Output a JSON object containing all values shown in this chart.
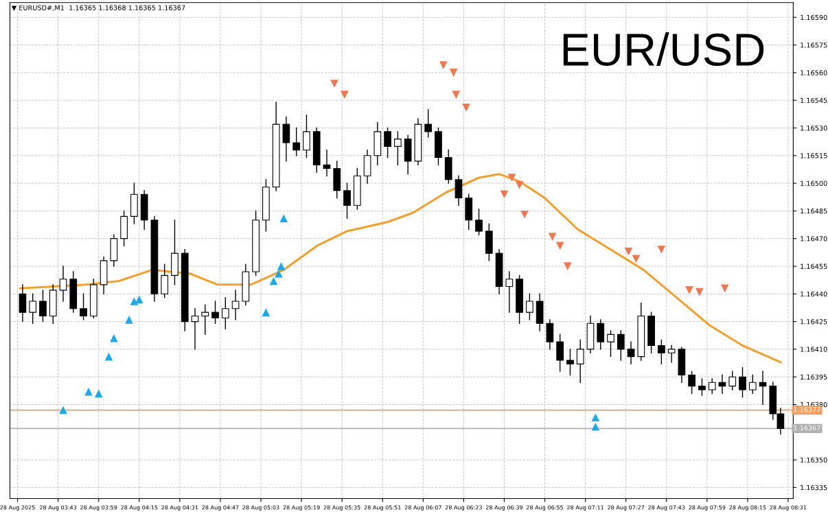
{
  "chart_data": {
    "type": "candlestick",
    "title": "EUR/USD",
    "subtitle": "▼ EURUSD#,M1  1.16365 1.16368 1.16365 1.16367",
    "x": [
      "2025-08-28T03:29",
      "2025-08-28T03:33",
      "2025-08-28T03:37",
      "2025-08-28T03:41",
      "2025-08-28T03:45",
      "2025-08-28T03:49",
      "2025-08-28T03:53",
      "2025-08-28T03:57",
      "2025-08-28T04:01",
      "2025-08-28T04:05",
      "2025-08-28T04:09",
      "2025-08-28T04:13",
      "2025-08-28T04:17",
      "2025-08-28T04:21",
      "2025-08-28T04:25",
      "2025-08-28T04:29",
      "2025-08-28T04:33",
      "2025-08-28T04:37",
      "2025-08-28T04:41",
      "2025-08-28T04:45",
      "2025-08-28T04:49",
      "2025-08-28T04:53",
      "2025-08-28T04:57",
      "2025-08-28T05:01",
      "2025-08-28T05:05",
      "2025-08-28T05:09",
      "2025-08-28T05:13",
      "2025-08-28T05:17",
      "2025-08-28T05:21",
      "2025-08-28T05:25",
      "2025-08-28T05:29",
      "2025-08-28T05:33",
      "2025-08-28T05:37",
      "2025-08-28T05:41",
      "2025-08-28T05:45",
      "2025-08-28T05:49",
      "2025-08-28T05:53",
      "2025-08-28T05:57",
      "2025-08-28T06:01",
      "2025-08-28T06:05",
      "2025-08-28T06:09",
      "2025-08-28T06:13",
      "2025-08-28T06:17",
      "2025-08-28T06:21",
      "2025-08-28T06:25",
      "2025-08-28T06:29",
      "2025-08-28T06:33",
      "2025-08-28T06:37",
      "2025-08-28T06:41",
      "2025-08-28T06:45",
      "2025-08-28T06:49",
      "2025-08-28T06:53",
      "2025-08-28T06:57",
      "2025-08-28T07:01",
      "2025-08-28T07:05",
      "2025-08-28T07:09",
      "2025-08-28T07:13",
      "2025-08-28T07:17",
      "2025-08-28T07:21",
      "2025-08-28T07:25",
      "2025-08-28T07:29",
      "2025-08-28T07:33",
      "2025-08-28T07:37",
      "2025-08-28T07:41",
      "2025-08-28T07:45",
      "2025-08-28T07:49",
      "2025-08-28T07:53",
      "2025-08-28T07:57",
      "2025-08-28T08:01",
      "2025-08-28T08:05",
      "2025-08-28T08:09",
      "2025-08-28T08:13",
      "2025-08-28T08:17",
      "2025-08-28T08:21",
      "2025-08-28T08:25",
      "2025-08-28T08:28"
    ],
    "ohlc": [
      [
        1.1644,
        1.16445,
        1.16425,
        1.1643
      ],
      [
        1.1643,
        1.1644,
        1.16424,
        1.16436
      ],
      [
        1.16436,
        1.16442,
        1.16425,
        1.16428
      ],
      [
        1.16428,
        1.16445,
        1.16424,
        1.16442
      ],
      [
        1.16442,
        1.16455,
        1.16436,
        1.16448
      ],
      [
        1.16448,
        1.16452,
        1.1643,
        1.16432
      ],
      [
        1.16432,
        1.1644,
        1.16426,
        1.16428
      ],
      [
        1.16428,
        1.16448,
        1.16427,
        1.16445
      ],
      [
        1.16445,
        1.1646,
        1.1644,
        1.16458
      ],
      [
        1.16458,
        1.16472,
        1.16455,
        1.1647
      ],
      [
        1.1647,
        1.16485,
        1.16466,
        1.16482
      ],
      [
        1.16482,
        1.165,
        1.16478,
        1.16494
      ],
      [
        1.16494,
        1.16496,
        1.16475,
        1.1648
      ],
      [
        1.1648,
        1.16482,
        1.16436,
        1.1644
      ],
      [
        1.1644,
        1.16456,
        1.16438,
        1.1645
      ],
      [
        1.1645,
        1.1648,
        1.16445,
        1.16462
      ],
      [
        1.16462,
        1.16464,
        1.1642,
        1.16425
      ],
      [
        1.16425,
        1.16432,
        1.1641,
        1.16428
      ],
      [
        1.16428,
        1.16434,
        1.16418,
        1.1643
      ],
      [
        1.1643,
        1.16436,
        1.16424,
        1.16427
      ],
      [
        1.16427,
        1.16438,
        1.16421,
        1.16432
      ],
      [
        1.16432,
        1.16442,
        1.16426,
        1.16436
      ],
      [
        1.16436,
        1.16456,
        1.16434,
        1.16452
      ],
      [
        1.16452,
        1.16485,
        1.1645,
        1.1648
      ],
      [
        1.1648,
        1.16502,
        1.16474,
        1.16498
      ],
      [
        1.16498,
        1.16544,
        1.16496,
        1.16532
      ],
      [
        1.16532,
        1.16536,
        1.16512,
        1.16522
      ],
      [
        1.16522,
        1.1653,
        1.16515,
        1.16518
      ],
      [
        1.16518,
        1.16537,
        1.16514,
        1.16528
      ],
      [
        1.16528,
        1.1653,
        1.16506,
        1.1651
      ],
      [
        1.1651,
        1.16518,
        1.16504,
        1.16508
      ],
      [
        1.16508,
        1.16512,
        1.16492,
        1.16496
      ],
      [
        1.16496,
        1.165,
        1.16481,
        1.16488
      ],
      [
        1.16488,
        1.16508,
        1.16486,
        1.16504
      ],
      [
        1.16504,
        1.16518,
        1.165,
        1.16515
      ],
      [
        1.16515,
        1.16533,
        1.1651,
        1.16528
      ],
      [
        1.16528,
        1.1653,
        1.16514,
        1.1652
      ],
      [
        1.1652,
        1.16528,
        1.1651,
        1.16524
      ],
      [
        1.16524,
        1.16526,
        1.16505,
        1.16512
      ],
      [
        1.16512,
        1.16535,
        1.1651,
        1.16532
      ],
      [
        1.16532,
        1.1654,
        1.16525,
        1.16528
      ],
      [
        1.16528,
        1.1653,
        1.1651,
        1.16514
      ],
      [
        1.16514,
        1.16518,
        1.165,
        1.16502
      ],
      [
        1.16502,
        1.16504,
        1.16488,
        1.16492
      ],
      [
        1.16492,
        1.16494,
        1.16475,
        1.1648
      ],
      [
        1.1648,
        1.16486,
        1.16472,
        1.16474
      ],
      [
        1.16474,
        1.16478,
        1.16458,
        1.16462
      ],
      [
        1.16462,
        1.16464,
        1.1644,
        1.16444
      ],
      [
        1.16444,
        1.16452,
        1.1643,
        1.16448
      ],
      [
        1.16448,
        1.1645,
        1.16424,
        1.1643
      ],
      [
        1.1643,
        1.1644,
        1.16426,
        1.16436
      ],
      [
        1.16436,
        1.1644,
        1.1642,
        1.16424
      ],
      [
        1.16424,
        1.16426,
        1.1641,
        1.16414
      ],
      [
        1.16414,
        1.16418,
        1.16398,
        1.16404
      ],
      [
        1.16404,
        1.1641,
        1.16396,
        1.16402
      ],
      [
        1.16402,
        1.16415,
        1.16392,
        1.1641
      ],
      [
        1.1641,
        1.16428,
        1.16408,
        1.16424
      ],
      [
        1.16424,
        1.16426,
        1.1641,
        1.16414
      ],
      [
        1.16414,
        1.1642,
        1.16406,
        1.16418
      ],
      [
        1.16418,
        1.1642,
        1.16404,
        1.1641
      ],
      [
        1.1641,
        1.16414,
        1.16402,
        1.16406
      ],
      [
        1.16406,
        1.16435,
        1.16404,
        1.16428
      ],
      [
        1.16428,
        1.1643,
        1.16408,
        1.16412
      ],
      [
        1.16412,
        1.16415,
        1.16402,
        1.16408
      ],
      [
        1.16408,
        1.16412,
        1.16403,
        1.1641
      ],
      [
        1.1641,
        1.16411,
        1.16392,
        1.16396
      ],
      [
        1.16396,
        1.16398,
        1.16386,
        1.1639
      ],
      [
        1.1639,
        1.16394,
        1.16385,
        1.16388
      ],
      [
        1.16388,
        1.16394,
        1.16386,
        1.16392
      ],
      [
        1.16392,
        1.16396,
        1.16386,
        1.1639
      ],
      [
        1.1639,
        1.16398,
        1.16388,
        1.16395
      ],
      [
        1.16395,
        1.164,
        1.16384,
        1.16388
      ],
      [
        1.16388,
        1.16396,
        1.16386,
        1.16392
      ],
      [
        1.16392,
        1.16398,
        1.1638,
        1.1639
      ],
      [
        1.1639,
        1.16392,
        1.16372,
        1.16375
      ],
      [
        1.16375,
        1.16378,
        1.16364,
        1.16367
      ]
    ],
    "series": [
      {
        "type": "line",
        "color": "#f0a030",
        "x": [
          "2025-08-28T03:28",
          "2025-08-28T03:41",
          "2025-08-28T03:54",
          "2025-08-28T04:07",
          "2025-08-28T04:20",
          "2025-08-28T04:35",
          "2025-08-28T04:46",
          "2025-08-28T04:59",
          "2025-08-28T05:12",
          "2025-08-28T05:25",
          "2025-08-28T05:37",
          "2025-08-28T05:53",
          "2025-08-28T06:03",
          "2025-08-28T06:16",
          "2025-08-28T06:29",
          "2025-08-28T06:37",
          "2025-08-28T06:45",
          "2025-08-28T06:55",
          "2025-08-28T07:08",
          "2025-08-28T07:21",
          "2025-08-28T07:34",
          "2025-08-28T07:47",
          "2025-08-28T08:00",
          "2025-08-28T08:13",
          "2025-08-28T08:28"
        ],
        "values": [
          1.16443,
          1.16444,
          1.16445,
          1.16447,
          1.16453,
          1.16451,
          1.16445,
          1.16445,
          1.16453,
          1.16466,
          1.16474,
          1.16479,
          1.16484,
          1.16495,
          1.16503,
          1.16505,
          1.16501,
          1.16492,
          1.16475,
          1.16464,
          1.16453,
          1.16438,
          1.16423,
          1.16412,
          1.16403
        ]
      },
      {
        "type": "scatter",
        "marker": "triangle",
        "color": "#1ea8e8",
        "x": [
          "2025-08-28T03:45",
          "2025-08-28T03:55",
          "2025-08-28T03:59",
          "2025-08-28T04:03",
          "2025-08-28T04:05",
          "2025-08-28T04:11",
          "2025-08-28T04:13",
          "2025-08-28T04:15",
          "2025-08-28T05:05",
          "2025-08-28T05:08",
          "2025-08-28T05:10",
          "2025-08-28T05:11",
          "2025-08-28T05:12",
          "2025-08-28T07:15",
          "2025-08-28T07:15"
        ],
        "values": [
          1.16377,
          1.16387,
          1.16386,
          1.16406,
          1.16416,
          1.16426,
          1.16436,
          1.16437,
          1.1643,
          1.16447,
          1.16451,
          1.16455,
          1.16481,
          1.16368,
          1.16373
        ]
      },
      {
        "type": "scatter",
        "marker": "triangle",
        "color": "#f07850",
        "x": [
          "2025-08-28T05:32",
          "2025-08-28T05:36",
          "2025-08-28T06:15",
          "2025-08-28T06:19",
          "2025-08-28T06:20",
          "2025-08-28T06:24",
          "2025-08-28T06:39",
          "2025-08-28T06:42",
          "2025-08-28T06:45",
          "2025-08-28T06:47",
          "2025-08-28T06:58",
          "2025-08-28T07:01",
          "2025-08-28T07:04",
          "2025-08-28T07:28",
          "2025-08-28T07:31",
          "2025-08-28T07:41",
          "2025-08-28T07:52",
          "2025-08-28T07:56",
          "2025-08-28T08:06"
        ],
        "values": [
          1.16554,
          1.16548,
          1.16564,
          1.1656,
          1.16548,
          1.16541,
          1.16494,
          1.16503,
          1.16499,
          1.16483,
          1.16471,
          1.16466,
          1.16455,
          1.16463,
          1.16459,
          1.16464,
          1.16442,
          1.16441,
          1.16443
        ]
      }
    ],
    "ref_lines": [
      {
        "axis": "y",
        "value": 1.16377,
        "label": "1.16377",
        "color": "#f0a060"
      },
      {
        "axis": "y",
        "value": 1.16367,
        "label": "1.16367",
        "color": "#b0b0b0"
      }
    ],
    "xlim": [
      "2025-08-28T03:24",
      "2025-08-28T08:33"
    ],
    "xticks": [
      {
        "value": "2025-08-28T03:27",
        "label": "28 Aug 2025"
      },
      {
        "value": "2025-08-28T03:43",
        "label": "28 Aug 03:43"
      },
      {
        "value": "2025-08-28T03:59",
        "label": "28 Aug 03:59"
      },
      {
        "value": "2025-08-28T04:15",
        "label": "28 Aug 04:15"
      },
      {
        "value": "2025-08-28T04:31",
        "label": "28 Aug 04:31"
      },
      {
        "value": "2025-08-28T04:47",
        "label": "28 Aug 04:47"
      },
      {
        "value": "2025-08-28T05:03",
        "label": "28 Aug 05:03"
      },
      {
        "value": "2025-08-28T05:19",
        "label": "28 Aug 05:19"
      },
      {
        "value": "2025-08-28T05:35",
        "label": "28 Aug 05:35"
      },
      {
        "value": "2025-08-28T05:51",
        "label": "28 Aug 05:51"
      },
      {
        "value": "2025-08-28T06:07",
        "label": "28 Aug 06:07"
      },
      {
        "value": "2025-08-28T06:23",
        "label": "28 Aug 06:23"
      },
      {
        "value": "2025-08-28T06:39",
        "label": "28 Aug 06:39"
      },
      {
        "value": "2025-08-28T06:55",
        "label": "28 Aug 06:55"
      },
      {
        "value": "2025-08-28T07:11",
        "label": "28 Aug 07:11"
      },
      {
        "value": "2025-08-28T07:27",
        "label": "28 Aug 07:27"
      },
      {
        "value": "2025-08-28T07:43",
        "label": "28 Aug 07:43"
      },
      {
        "value": "2025-08-28T07:59",
        "label": "28 Aug 07:59"
      },
      {
        "value": "2025-08-28T08:15",
        "label": "28 Aug 08:15"
      },
      {
        "value": "2025-08-28T08:31",
        "label": "28 Aug 08:31"
      }
    ],
    "ylim": [
      1.16329,
      1.16598
    ],
    "yticks": [
      1.16335,
      {
        "value": 1.1635,
        "label": "1.16350"
      },
      {
        "value": 1.1638,
        "label": "1.16380"
      },
      1.16395,
      {
        "value": 1.1641,
        "label": "1.16410"
      },
      1.16425,
      {
        "value": 1.1644,
        "label": "1.16440"
      },
      1.16455,
      {
        "value": 1.1647,
        "label": "1.16470"
      },
      1.16485,
      {
        "value": 1.165,
        "label": "1.16500"
      },
      1.16515,
      {
        "value": 1.1653,
        "label": "1.16530"
      },
      1.16545,
      {
        "value": 1.1656,
        "label": "1.16560"
      },
      1.16575,
      {
        "value": 1.1659,
        "label": "1.16590"
      }
    ],
    "grid": true,
    "legend": false
  }
}
